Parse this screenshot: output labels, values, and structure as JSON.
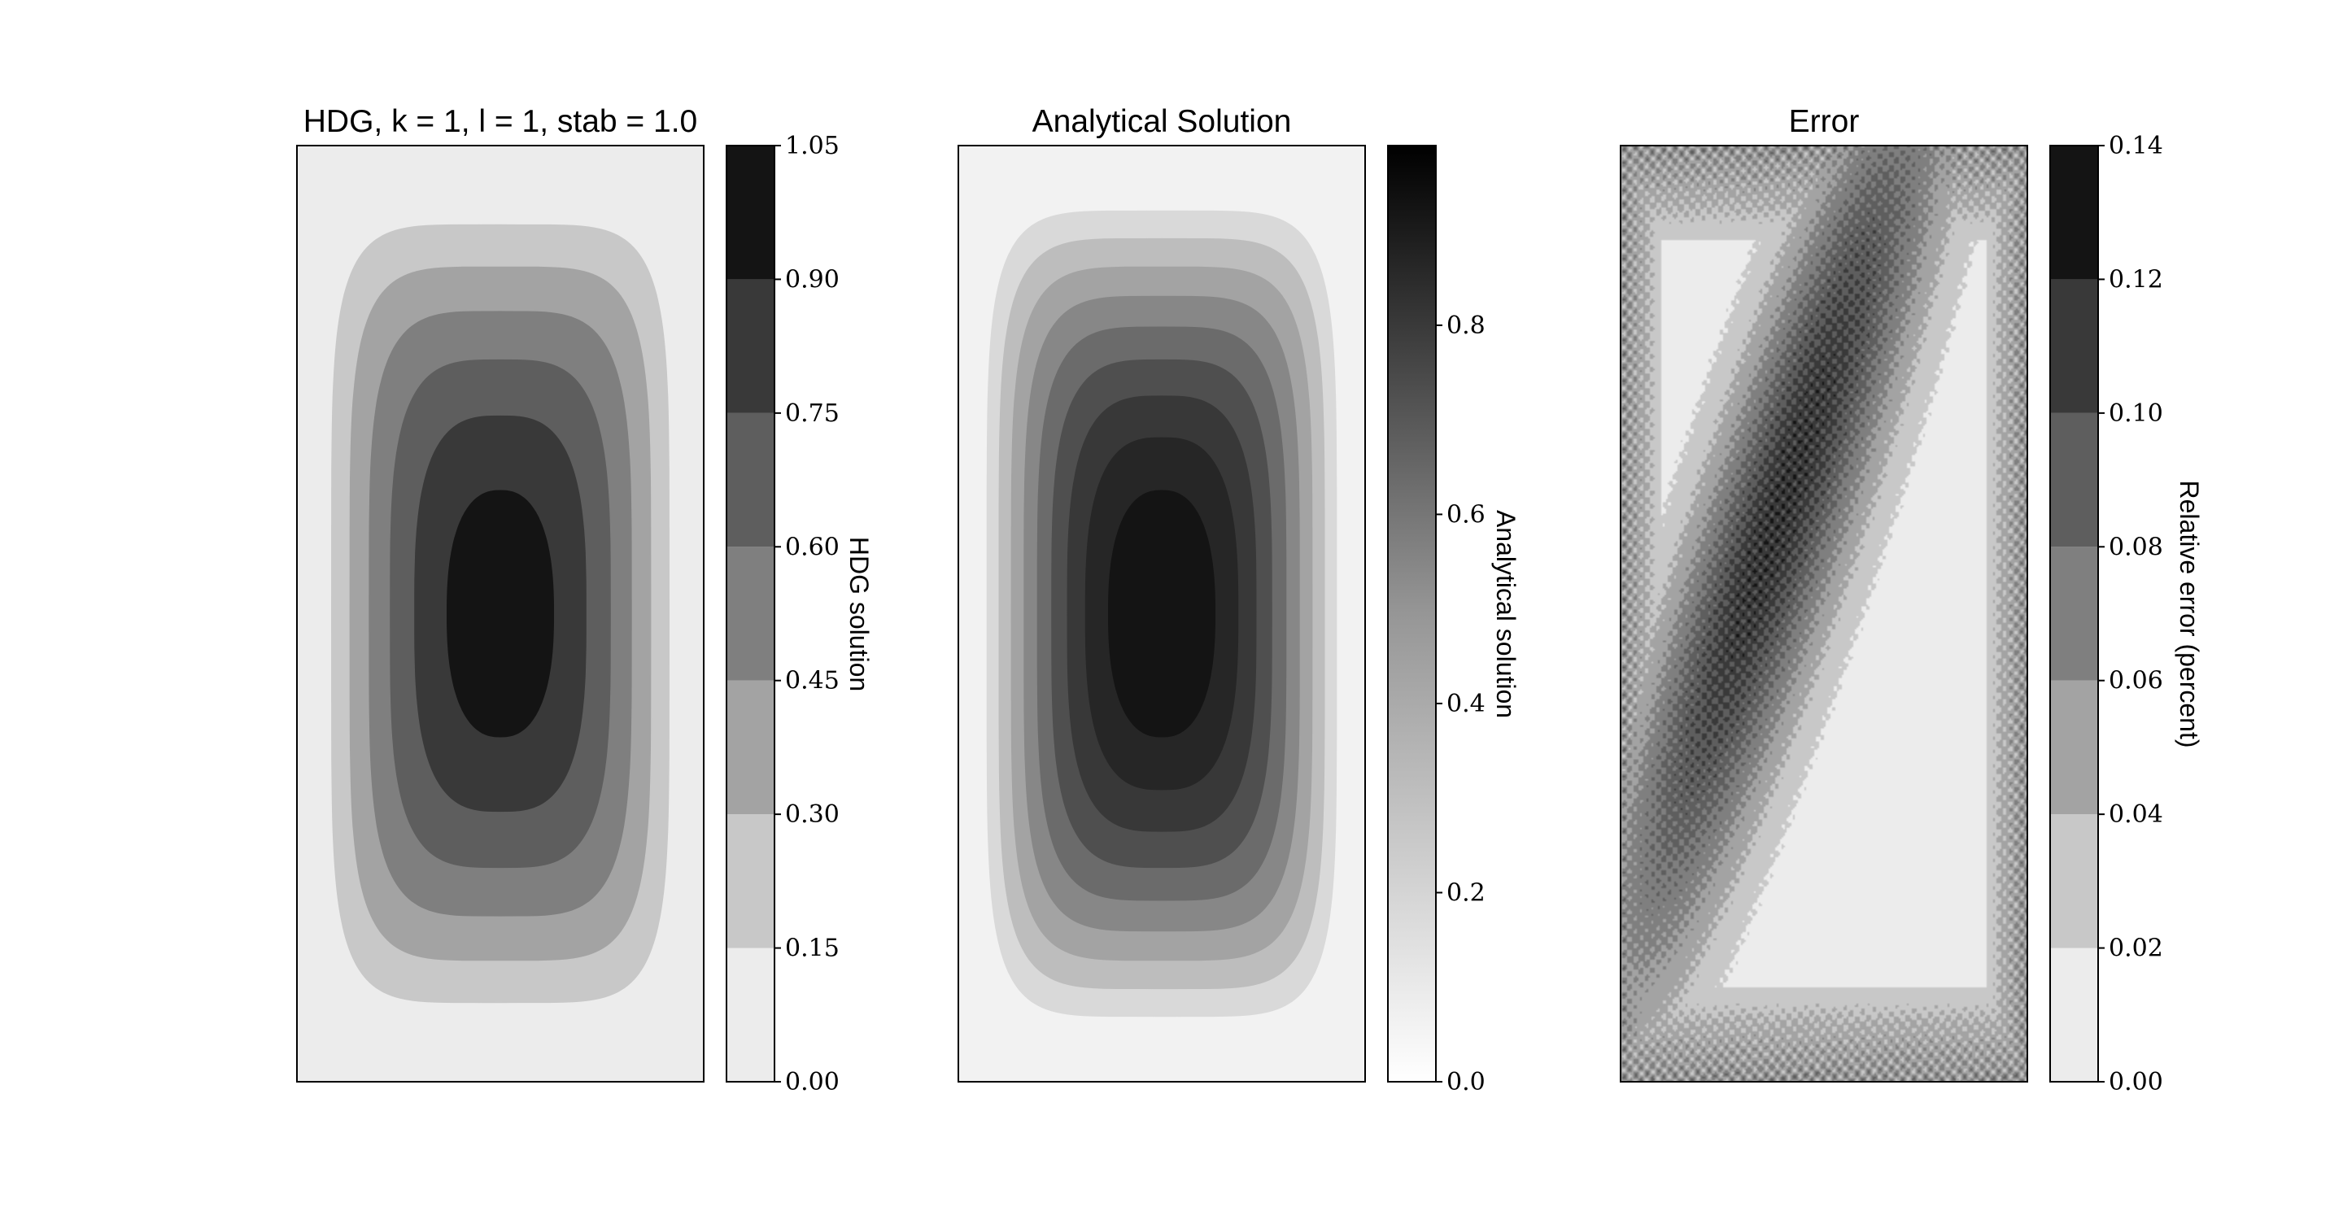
{
  "figure": {
    "panels": [
      {
        "title": "HDG, k = 1, l = 1, stab = 1.0",
        "colorbar_label": "HDG solution",
        "colorbar_ticks": [
          "0.00",
          "0.15",
          "0.30",
          "0.45",
          "0.60",
          "0.75",
          "0.90",
          "1.05"
        ]
      },
      {
        "title": "Analytical Solution",
        "colorbar_label": "Analytical solution",
        "colorbar_ticks": [
          "0.0",
          "0.2",
          "0.4",
          "0.6",
          "0.8"
        ]
      },
      {
        "title": "Error",
        "colorbar_label": "Relative error (percent)",
        "colorbar_ticks": [
          "0.00",
          "0.02",
          "0.04",
          "0.06",
          "0.08",
          "0.10",
          "0.12",
          "0.14"
        ]
      }
    ]
  },
  "chart_data": [
    {
      "type": "heatmap",
      "title": "HDG, k = 1, l = 1, stab = 1.0",
      "colorbar_label": "HDG solution",
      "colormap": "Greys",
      "levels": [
        0.0,
        0.15,
        0.3,
        0.45,
        0.6,
        0.75,
        0.9,
        1.05
      ],
      "level_colors": [
        "#ececec",
        "#c8c8c8",
        "#a3a3a3",
        "#7f7f7f",
        "#5e5e5e",
        "#393939",
        "#141414"
      ],
      "clim": [
        0.0,
        1.05
      ],
      "peak_value": 1.0,
      "field": "sin(pi*x)*sin(pi*y)"
    },
    {
      "type": "heatmap",
      "title": "Analytical Solution",
      "colorbar_label": "Analytical solution",
      "colormap": "Greys",
      "levels": [
        0.0,
        0.1,
        0.2,
        0.3,
        0.4,
        0.5,
        0.6,
        0.7,
        0.8,
        0.9,
        1.0
      ],
      "level_colors": [
        "#f2f2f2",
        "#d9d9d9",
        "#bdbdbd",
        "#a3a3a3",
        "#878787",
        "#6b6b6b",
        "#4f4f4f",
        "#383838",
        "#262626",
        "#141414"
      ],
      "clim": [
        0.0,
        0.99
      ],
      "peak_value": 1.0,
      "field": "sin(pi*x)*sin(pi*y)"
    },
    {
      "type": "heatmap",
      "title": "Error",
      "colorbar_label": "Relative error (percent)",
      "colormap": "Greys",
      "levels": [
        0.0,
        0.02,
        0.04,
        0.06,
        0.08,
        0.1,
        0.12,
        0.14
      ],
      "level_colors": [
        "#ececec",
        "#c8c8c8",
        "#a3a3a3",
        "#7f7f7f",
        "#5e5e5e",
        "#393939",
        "#141414"
      ],
      "clim": [
        0.0,
        0.14
      ],
      "peak_value": 0.13,
      "field": "oscillatory relative error concentrated along the diagonal band"
    }
  ]
}
